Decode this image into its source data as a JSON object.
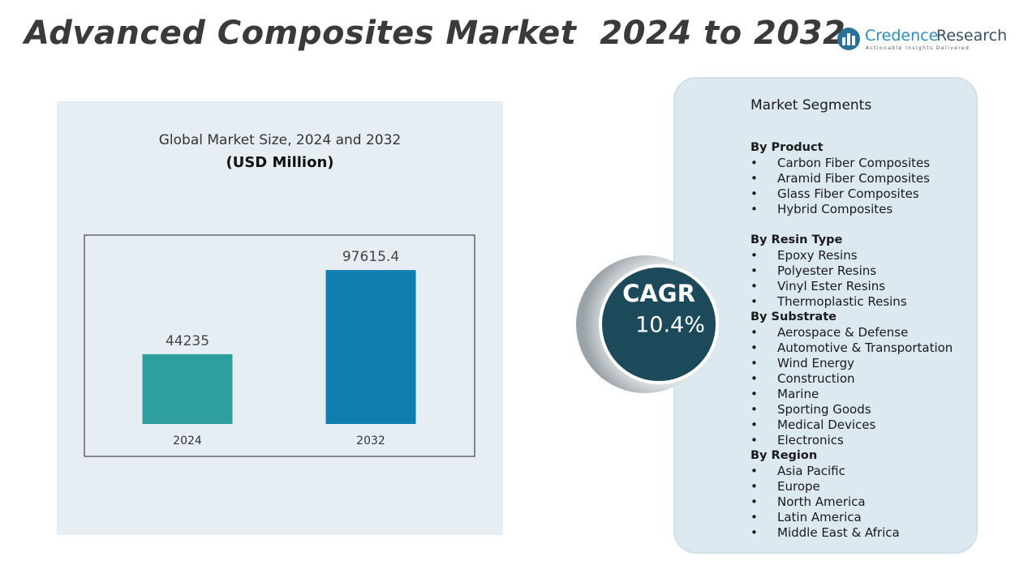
{
  "header": {
    "title": "Advanced Composites Market  2024 to 2032",
    "logo_name": "Credence",
    "logo_name2": "Research",
    "logo_tagline": "Actionable Insights Delivered"
  },
  "chart_data": {
    "type": "bar",
    "title": "Global Market Size, 2024 and 2032",
    "subtitle": "(USD Million)",
    "categories": [
      "2024",
      "2032"
    ],
    "values": [
      44235,
      97615.4
    ],
    "colors": [
      "#2e9e9e",
      "#0e7fae"
    ],
    "ylim": [
      0,
      110000
    ]
  },
  "cagr": {
    "label": "CAGR",
    "value": "10.4%"
  },
  "segments": {
    "title": "Market Segments",
    "groups": [
      {
        "name": "By  Product",
        "items": [
          "Carbon Fiber Composites",
          "Aramid Fiber Composites",
          "Glass Fiber Composites",
          "Hybrid Composites"
        ]
      },
      {
        "name": "By Resin Type",
        "items": [
          "Epoxy Resins",
          "Polyester Resins",
          "Vinyl Ester Resins",
          "Thermoplastic Resins"
        ]
      },
      {
        "name": "By Substrate",
        "items": [
          "Aerospace & Defense",
          "Automotive & Transportation",
          "Wind Energy",
          "Construction",
          "Marine",
          "Sporting Goods",
          "Medical Devices",
          "Electronics"
        ]
      },
      {
        "name": "By Region",
        "items": [
          "Asia Pacific",
          "Europe",
          "North America",
          "Latin America",
          "Middle East & Africa"
        ]
      }
    ]
  }
}
